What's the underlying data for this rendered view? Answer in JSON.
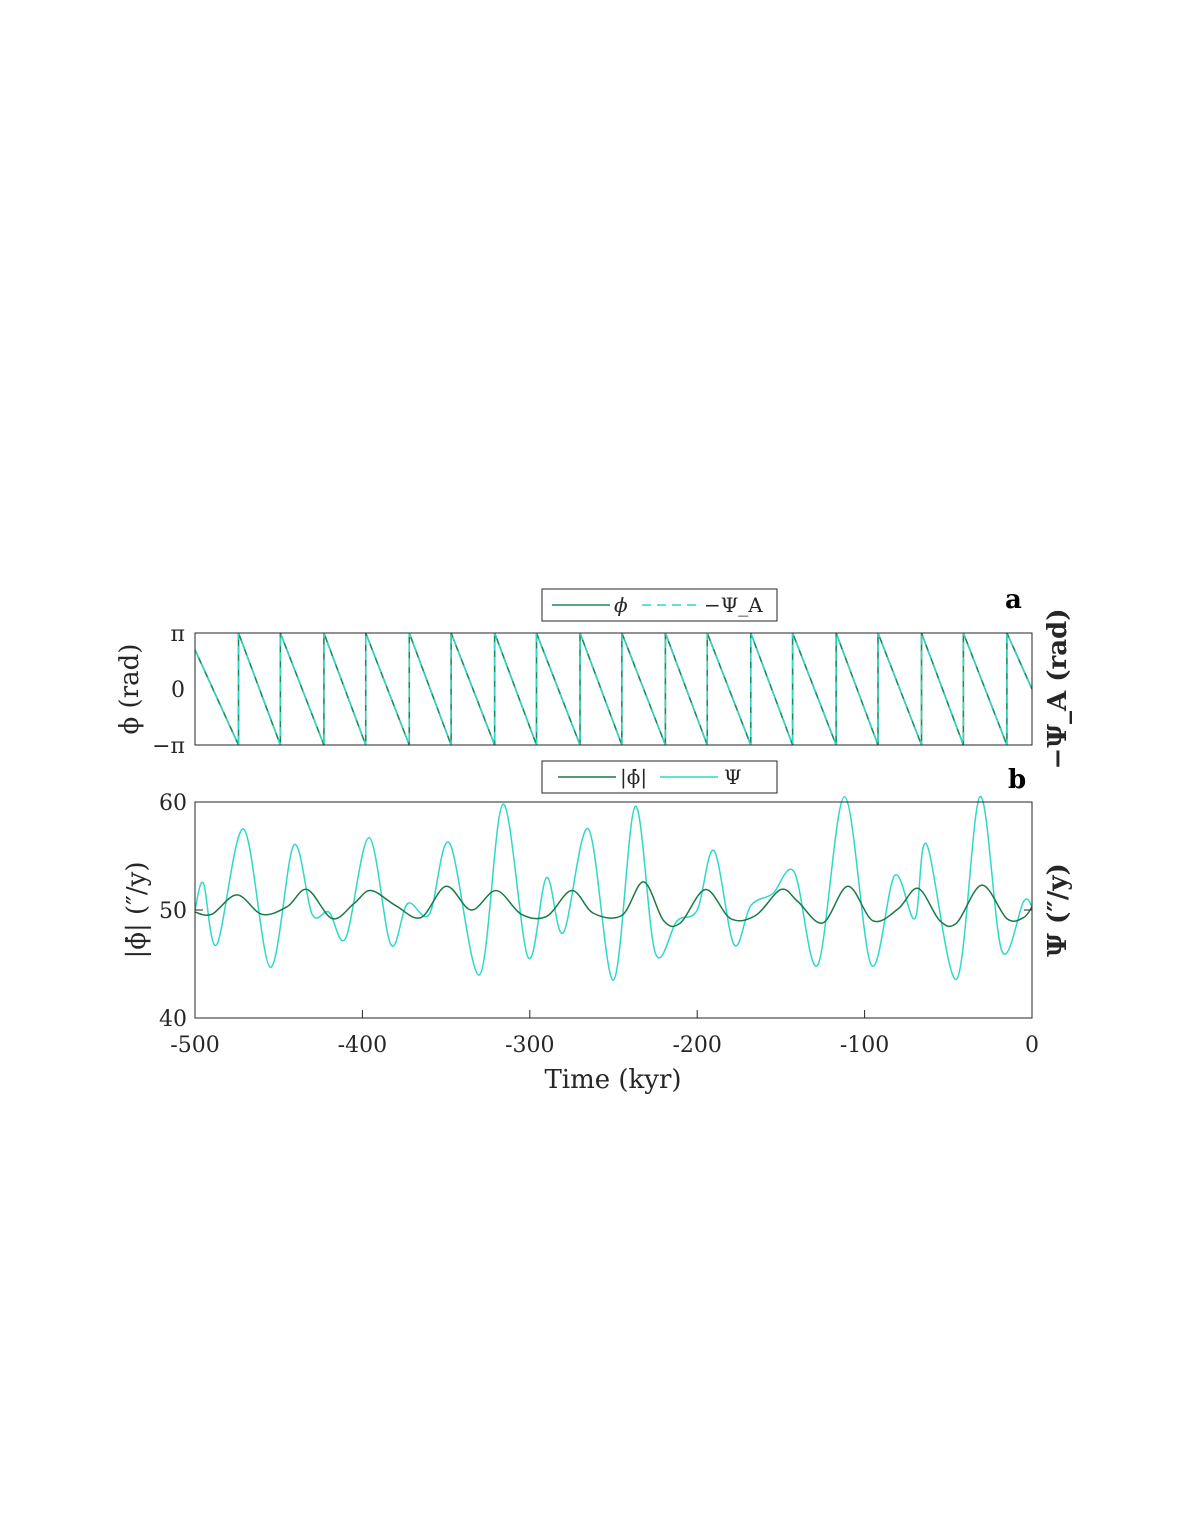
{
  "chart_data": [
    {
      "panel": "a",
      "type": "line",
      "legend": [
        "ϕ",
        "−Ψ_A"
      ],
      "ylabel_left": "ϕ (rad)",
      "ylabel_right": "−Ψ_A (rad)",
      "yticks": [
        "π",
        "0",
        "−π"
      ],
      "ylim": [
        -3.1416,
        3.1416
      ],
      "xlim": [
        -500,
        0
      ],
      "legend_placement": "top-center",
      "wrap_times_kyr": [
        -474,
        -449,
        -423,
        -398,
        -372,
        -347,
        -321,
        -296,
        -270,
        -245,
        -219,
        -194,
        -168,
        -143,
        -117,
        -92,
        -66,
        -41,
        -15
      ],
      "series": [
        {
          "name": "ϕ",
          "color": "#1a8a5a",
          "style": "solid",
          "x": [
            -500,
            -474,
            -449,
            -423,
            -398,
            -372,
            -347,
            -321,
            -296,
            -270,
            -245,
            -219,
            -194,
            -168,
            -143,
            -117,
            -92,
            -66,
            -41,
            -15,
            0
          ],
          "y": [
            2.2,
            -3.1416,
            -3.1416,
            -3.1416,
            -3.1416,
            -3.1416,
            -3.1416,
            -3.1416,
            -3.1416,
            -3.1416,
            -3.1416,
            -3.1416,
            -3.1416,
            -3.1416,
            -3.1416,
            -3.1416,
            -3.1416,
            -3.1416,
            -3.1416,
            -3.1416,
            0.0
          ]
        },
        {
          "name": "−Ψ_A",
          "color": "#2fd8c8",
          "style": "dashed"
        }
      ]
    },
    {
      "panel": "b",
      "type": "line",
      "legend": [
        "|ϕ̇|",
        "Ψ"
      ],
      "xlabel": "Time (kyr)",
      "ylabel_left": "|ϕ̇| (″/y)",
      "ylabel_right": "Ψ (″/y)",
      "xticks": [
        "-500",
        "-400",
        "-300",
        "-200",
        "-100",
        "0"
      ],
      "yticks": [
        "60",
        "50",
        "40"
      ],
      "xlim": [
        -500,
        0
      ],
      "ylim": [
        40,
        60
      ],
      "legend_placement": "top-center",
      "series": [
        {
          "name": "|ϕ̇|",
          "color": "#1a7a45",
          "x": [
            -500,
            -490,
            -475,
            -460,
            -445,
            -433,
            -418,
            -405,
            -395,
            -380,
            -365,
            -350,
            -335,
            -320,
            -305,
            -290,
            -275,
            -262,
            -245,
            -232,
            -220,
            -210,
            -195,
            -180,
            -165,
            -150,
            -140,
            -125,
            -110,
            -95,
            -80,
            -68,
            -55,
            -45,
            -30,
            -15,
            -5,
            0
          ],
          "y": [
            49.8,
            49.6,
            51.4,
            49.6,
            50.3,
            51.9,
            49.2,
            50.6,
            51.8,
            50.4,
            49.3,
            52.2,
            50.0,
            51.8,
            49.6,
            49.4,
            51.8,
            49.7,
            49.5,
            52.6,
            49.0,
            48.8,
            51.9,
            49.2,
            49.5,
            51.9,
            50.8,
            48.8,
            52.2,
            49.0,
            50.1,
            52.0,
            49.0,
            48.8,
            52.3,
            49.2,
            49.3,
            50.3
          ]
        },
        {
          "name": "Ψ",
          "color": "#2fd8c8",
          "x": [
            -500,
            -495,
            -487,
            -471,
            -455,
            -441,
            -430,
            -420,
            -410,
            -396,
            -383,
            -373,
            -360,
            -348,
            -330,
            -316,
            -301,
            -290,
            -280,
            -265,
            -250,
            -237,
            -225,
            -212,
            -200,
            -190,
            -178,
            -168,
            -155,
            -142,
            -128,
            -112,
            -96,
            -82,
            -70,
            -63,
            -45,
            -31,
            -18,
            -5,
            0
          ],
          "y": [
            50.0,
            52.5,
            46.8,
            57.5,
            44.7,
            56.0,
            49.6,
            49.8,
            47.4,
            56.7,
            46.8,
            50.6,
            49.6,
            56.2,
            44.0,
            59.8,
            45.6,
            53.0,
            47.9,
            57.5,
            43.5,
            59.6,
            46.0,
            49.0,
            50.0,
            55.5,
            46.8,
            50.4,
            51.5,
            53.5,
            44.9,
            60.5,
            44.9,
            53.2,
            49.2,
            56.1,
            43.6,
            60.5,
            46.2,
            50.8,
            50.3
          ]
        }
      ]
    }
  ]
}
